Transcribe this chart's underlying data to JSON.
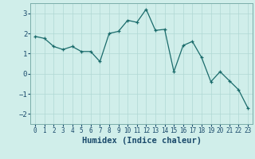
{
  "x": [
    0,
    1,
    2,
    3,
    4,
    5,
    6,
    7,
    8,
    9,
    10,
    11,
    12,
    13,
    14,
    15,
    16,
    17,
    18,
    19,
    20,
    21,
    22,
    23
  ],
  "y": [
    1.85,
    1.75,
    1.35,
    1.2,
    1.35,
    1.1,
    1.1,
    0.6,
    2.0,
    2.1,
    2.65,
    2.55,
    3.2,
    2.15,
    2.2,
    0.1,
    1.4,
    1.6,
    0.8,
    -0.4,
    0.1,
    -0.35,
    -0.8,
    -1.7
  ],
  "line_color": "#1a6b6b",
  "marker_color": "#1a6b6b",
  "bg_color": "#d0eeea",
  "grid_color": "#b0d8d4",
  "xlabel": "Humidex (Indice chaleur)",
  "xlabel_color": "#1a4a6b",
  "tick_color": "#1a4a6b",
  "ylim": [
    -2.5,
    3.5
  ],
  "xlim": [
    -0.5,
    23.5
  ],
  "yticks": [
    -2,
    -1,
    0,
    1,
    2,
    3
  ],
  "xticks": [
    0,
    1,
    2,
    3,
    4,
    5,
    6,
    7,
    8,
    9,
    10,
    11,
    12,
    13,
    14,
    15,
    16,
    17,
    18,
    19,
    20,
    21,
    22,
    23
  ]
}
